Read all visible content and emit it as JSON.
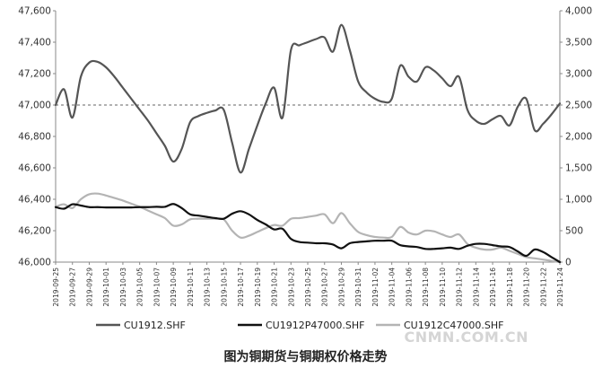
{
  "chart_data": {
    "type": "line",
    "ylim_left": [
      46000,
      47600
    ],
    "ylim_right": [
      0,
      4000
    ],
    "y_ticks_left": [
      "46,000",
      "46,200",
      "46,400",
      "46,600",
      "46,800",
      "47,000",
      "47,200",
      "47,400",
      "47,600"
    ],
    "y_ticks_right": [
      "0",
      "500",
      "1,000",
      "1,500",
      "2,000",
      "2,500",
      "3,000",
      "3,500",
      "4,000"
    ],
    "x_ticks": [
      "2019-09-25",
      "2019-09-27",
      "2019-09-29",
      "2019-10-01",
      "2019-10-03",
      "2019-10-05",
      "2019-10-07",
      "2019-10-09",
      "2019-10-11",
      "2019-10-13",
      "2019-10-15",
      "2019-10-17",
      "2019-10-19",
      "2019-10-21",
      "2019-10-23",
      "2019-10-25",
      "2019-10-27",
      "2019-10-29",
      "2019-10-31",
      "2019-11-02",
      "2019-11-04",
      "2019-11-06",
      "2019-11-08",
      "2019-11-10",
      "2019-11-12",
      "2019-11-14",
      "2019-11-16",
      "2019-11-18",
      "2019-11-20",
      "2019-11-22",
      "2019-11-24"
    ],
    "reference_line": {
      "axis": "left",
      "value": 47000,
      "style": "dashed"
    },
    "series": [
      {
        "name": "CU1912.SHF",
        "axis": "left",
        "color": "#555555",
        "points": [
          [
            "2019-09-25",
            47000
          ],
          [
            "2019-09-26",
            47100
          ],
          [
            "2019-09-27",
            46920
          ],
          [
            "2019-09-28",
            47180
          ],
          [
            "2019-09-29",
            47270
          ],
          [
            "2019-09-30",
            47275
          ],
          [
            "2019-10-01",
            47240
          ],
          [
            "2019-10-02",
            47180
          ],
          [
            "2019-10-03",
            47110
          ],
          [
            "2019-10-04",
            47040
          ],
          [
            "2019-10-05",
            46970
          ],
          [
            "2019-10-06",
            46900
          ],
          [
            "2019-10-07",
            46820
          ],
          [
            "2019-10-08",
            46740
          ],
          [
            "2019-10-09",
            46640
          ],
          [
            "2019-10-10",
            46720
          ],
          [
            "2019-10-11",
            46890
          ],
          [
            "2019-10-12",
            46930
          ],
          [
            "2019-10-13",
            46950
          ],
          [
            "2019-10-14",
            46965
          ],
          [
            "2019-10-15",
            46970
          ],
          [
            "2019-10-16",
            46760
          ],
          [
            "2019-10-17",
            46570
          ],
          [
            "2019-10-18",
            46720
          ],
          [
            "2019-10-19",
            46870
          ],
          [
            "2019-10-20",
            47010
          ],
          [
            "2019-10-21",
            47110
          ],
          [
            "2019-10-22",
            46920
          ],
          [
            "2019-10-23",
            47350
          ],
          [
            "2019-10-24",
            47380
          ],
          [
            "2019-10-25",
            47400
          ],
          [
            "2019-10-26",
            47420
          ],
          [
            "2019-10-27",
            47430
          ],
          [
            "2019-10-28",
            47340
          ],
          [
            "2019-10-29",
            47510
          ],
          [
            "2019-10-30",
            47350
          ],
          [
            "2019-10-31",
            47150
          ],
          [
            "2019-11-01",
            47080
          ],
          [
            "2019-11-02",
            47040
          ],
          [
            "2019-11-03",
            47020
          ],
          [
            "2019-11-04",
            47040
          ],
          [
            "2019-11-05",
            47250
          ],
          [
            "2019-11-06",
            47180
          ],
          [
            "2019-11-07",
            47150
          ],
          [
            "2019-11-08",
            47240
          ],
          [
            "2019-11-09",
            47220
          ],
          [
            "2019-11-10",
            47170
          ],
          [
            "2019-11-11",
            47120
          ],
          [
            "2019-11-12",
            47180
          ],
          [
            "2019-11-13",
            46970
          ],
          [
            "2019-11-14",
            46900
          ],
          [
            "2019-11-15",
            46880
          ],
          [
            "2019-11-16",
            46910
          ],
          [
            "2019-11-17",
            46930
          ],
          [
            "2019-11-18",
            46870
          ],
          [
            "2019-11-19",
            46990
          ],
          [
            "2019-11-20",
            47040
          ],
          [
            "2019-11-21",
            46840
          ],
          [
            "2019-11-22",
            46880
          ],
          [
            "2019-11-23",
            46940
          ],
          [
            "2019-11-24",
            47010
          ]
        ]
      },
      {
        "name": "CU1912P47000.SHF",
        "axis": "right",
        "color": "#111111",
        "points": [
          [
            "2019-09-25",
            875
          ],
          [
            "2019-09-26",
            850
          ],
          [
            "2019-09-27",
            920
          ],
          [
            "2019-09-28",
            900
          ],
          [
            "2019-09-29",
            875
          ],
          [
            "2019-09-30",
            875
          ],
          [
            "2019-10-01",
            870
          ],
          [
            "2019-10-02",
            870
          ],
          [
            "2019-10-03",
            870
          ],
          [
            "2019-10-04",
            870
          ],
          [
            "2019-10-05",
            875
          ],
          [
            "2019-10-06",
            875
          ],
          [
            "2019-10-07",
            880
          ],
          [
            "2019-10-08",
            880
          ],
          [
            "2019-10-09",
            925
          ],
          [
            "2019-10-10",
            860
          ],
          [
            "2019-10-11",
            760
          ],
          [
            "2019-10-12",
            740
          ],
          [
            "2019-10-13",
            720
          ],
          [
            "2019-10-14",
            700
          ],
          [
            "2019-10-15",
            690
          ],
          [
            "2019-10-16",
            770
          ],
          [
            "2019-10-17",
            810
          ],
          [
            "2019-10-18",
            760
          ],
          [
            "2019-10-19",
            670
          ],
          [
            "2019-10-20",
            600
          ],
          [
            "2019-10-21",
            520
          ],
          [
            "2019-10-22",
            530
          ],
          [
            "2019-10-23",
            370
          ],
          [
            "2019-10-24",
            320
          ],
          [
            "2019-10-25",
            310
          ],
          [
            "2019-10-26",
            300
          ],
          [
            "2019-10-27",
            300
          ],
          [
            "2019-10-28",
            280
          ],
          [
            "2019-10-29",
            220
          ],
          [
            "2019-10-30",
            300
          ],
          [
            "2019-10-31",
            320
          ],
          [
            "2019-11-01",
            330
          ],
          [
            "2019-11-02",
            340
          ],
          [
            "2019-11-03",
            340
          ],
          [
            "2019-11-04",
            340
          ],
          [
            "2019-11-05",
            270
          ],
          [
            "2019-11-06",
            250
          ],
          [
            "2019-11-07",
            240
          ],
          [
            "2019-11-08",
            210
          ],
          [
            "2019-11-09",
            210
          ],
          [
            "2019-11-10",
            220
          ],
          [
            "2019-11-11",
            230
          ],
          [
            "2019-11-12",
            210
          ],
          [
            "2019-11-13",
            260
          ],
          [
            "2019-11-14",
            290
          ],
          [
            "2019-11-15",
            290
          ],
          [
            "2019-11-16",
            270
          ],
          [
            "2019-11-17",
            250
          ],
          [
            "2019-11-18",
            240
          ],
          [
            "2019-11-19",
            170
          ],
          [
            "2019-11-20",
            100
          ],
          [
            "2019-11-21",
            200
          ],
          [
            "2019-11-22",
            160
          ],
          [
            "2019-11-23",
            80
          ],
          [
            "2019-11-24",
            0
          ]
        ]
      },
      {
        "name": "CU1912C47000.SHF",
        "axis": "right",
        "color": "#b4b4b4",
        "points": [
          [
            "2019-09-25",
            880
          ],
          [
            "2019-09-26",
            920
          ],
          [
            "2019-09-27",
            860
          ],
          [
            "2019-09-28",
            1000
          ],
          [
            "2019-09-29",
            1080
          ],
          [
            "2019-09-30",
            1090
          ],
          [
            "2019-10-01",
            1060
          ],
          [
            "2019-10-02",
            1020
          ],
          [
            "2019-10-03",
            980
          ],
          [
            "2019-10-04",
            930
          ],
          [
            "2019-10-05",
            880
          ],
          [
            "2019-10-06",
            820
          ],
          [
            "2019-10-07",
            760
          ],
          [
            "2019-10-08",
            700
          ],
          [
            "2019-10-09",
            580
          ],
          [
            "2019-10-10",
            600
          ],
          [
            "2019-10-11",
            680
          ],
          [
            "2019-10-12",
            690
          ],
          [
            "2019-10-13",
            690
          ],
          [
            "2019-10-14",
            690
          ],
          [
            "2019-10-15",
            680
          ],
          [
            "2019-10-16",
            500
          ],
          [
            "2019-10-17",
            390
          ],
          [
            "2019-10-18",
            420
          ],
          [
            "2019-10-19",
            480
          ],
          [
            "2019-10-20",
            540
          ],
          [
            "2019-10-21",
            590
          ],
          [
            "2019-10-22",
            580
          ],
          [
            "2019-10-23",
            690
          ],
          [
            "2019-10-24",
            700
          ],
          [
            "2019-10-25",
            720
          ],
          [
            "2019-10-26",
            740
          ],
          [
            "2019-10-27",
            760
          ],
          [
            "2019-10-28",
            620
          ],
          [
            "2019-10-29",
            780
          ],
          [
            "2019-10-30",
            620
          ],
          [
            "2019-10-31",
            480
          ],
          [
            "2019-11-01",
            430
          ],
          [
            "2019-11-02",
            400
          ],
          [
            "2019-11-03",
            390
          ],
          [
            "2019-11-04",
            400
          ],
          [
            "2019-11-05",
            560
          ],
          [
            "2019-11-06",
            470
          ],
          [
            "2019-11-07",
            440
          ],
          [
            "2019-11-08",
            500
          ],
          [
            "2019-11-09",
            490
          ],
          [
            "2019-11-10",
            440
          ],
          [
            "2019-11-11",
            400
          ],
          [
            "2019-11-12",
            440
          ],
          [
            "2019-11-13",
            290
          ],
          [
            "2019-11-14",
            230
          ],
          [
            "2019-11-15",
            200
          ],
          [
            "2019-11-16",
            200
          ],
          [
            "2019-11-17",
            230
          ],
          [
            "2019-11-18",
            180
          ],
          [
            "2019-11-19",
            130
          ],
          [
            "2019-11-20",
            80
          ],
          [
            "2019-11-21",
            60
          ],
          [
            "2019-11-22",
            40
          ],
          [
            "2019-11-23",
            20
          ],
          [
            "2019-11-24",
            0
          ]
        ]
      }
    ]
  },
  "caption": "图为铜期货与铜期权价格走势",
  "watermark": "CNMN.COM.CN"
}
